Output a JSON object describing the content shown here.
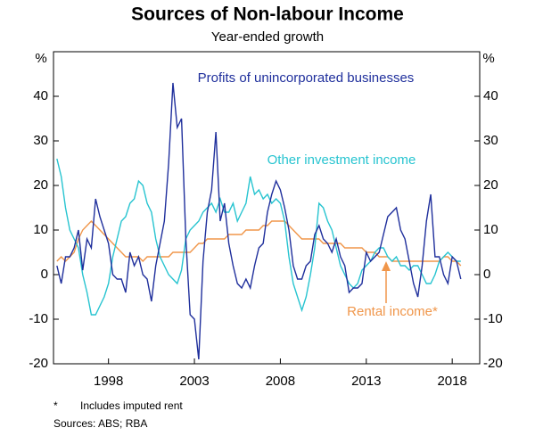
{
  "chart_data": {
    "type": "line",
    "title": "Sources of Non-labour Income",
    "subtitle": "Year-ended growth",
    "y_unit": "%",
    "xlim": [
      1994.8,
      2019.6
    ],
    "xticks": [
      1998,
      2003,
      2008,
      2013,
      2018
    ],
    "ylim": [
      -20,
      50
    ],
    "yticks": [
      -20,
      -10,
      0,
      10,
      20,
      30,
      40
    ],
    "y2lim": [
      -20,
      50
    ],
    "y2ticks": [
      -20,
      -10,
      0,
      10,
      20,
      30,
      40
    ],
    "x": [
      1995,
      1995.25,
      1995.5,
      1995.75,
      1996,
      1996.25,
      1996.5,
      1996.75,
      1997,
      1997.25,
      1997.5,
      1997.75,
      1998,
      1998.25,
      1998.5,
      1998.75,
      1999,
      1999.25,
      1999.5,
      1999.75,
      2000,
      2000.25,
      2000.5,
      2000.75,
      2001,
      2001.25,
      2001.5,
      2001.75,
      2002,
      2002.25,
      2002.5,
      2002.75,
      2003,
      2003.25,
      2003.5,
      2003.75,
      2004,
      2004.25,
      2004.5,
      2004.75,
      2005,
      2005.25,
      2005.5,
      2005.75,
      2006,
      2006.25,
      2006.5,
      2006.75,
      2007,
      2007.25,
      2007.5,
      2007.75,
      2008,
      2008.25,
      2008.5,
      2008.75,
      2009,
      2009.25,
      2009.5,
      2009.75,
      2010,
      2010.25,
      2010.5,
      2010.75,
      2011,
      2011.25,
      2011.5,
      2011.75,
      2012,
      2012.25,
      2012.5,
      2012.75,
      2013,
      2013.25,
      2013.5,
      2013.75,
      2014,
      2014.25,
      2014.5,
      2014.75,
      2015,
      2015.25,
      2015.5,
      2015.75,
      2016,
      2016.25,
      2016.5,
      2016.75,
      2017,
      2017.25,
      2017.5,
      2017.75,
      2018,
      2018.25,
      2018.5
    ],
    "series": [
      {
        "name": "Profits of unincorporated businesses",
        "color": "#1f2f9c",
        "values": [
          2,
          -2,
          4,
          4,
          6,
          10,
          1,
          8,
          6,
          17,
          13,
          10,
          7,
          0,
          -1,
          -1,
          -4,
          5,
          2,
          4,
          0,
          -1,
          -6,
          2,
          7,
          12,
          25,
          43,
          33,
          35,
          8,
          -9,
          -10,
          -19,
          3,
          14,
          19,
          32,
          12,
          16,
          7,
          2,
          -2,
          -3,
          -1,
          -3,
          2,
          6,
          7,
          14,
          18,
          21,
          19,
          15,
          10,
          2,
          -1,
          -1,
          2,
          3,
          9,
          11,
          8,
          7,
          5,
          8,
          4,
          2,
          -4,
          -3,
          -3,
          -2,
          5,
          3,
          4,
          5,
          9,
          13,
          14,
          15,
          10,
          8,
          3,
          -2,
          -5,
          2,
          12,
          18,
          4,
          4,
          0,
          -2,
          4,
          3,
          -1
        ]
      },
      {
        "name": "Other investment income",
        "color": "#27c4d0",
        "values": [
          26,
          22,
          15,
          10,
          8,
          6,
          0,
          -4,
          -9,
          -9,
          -7,
          -5,
          -2,
          4,
          8,
          12,
          13,
          16,
          17,
          21,
          20,
          16,
          14,
          8,
          4,
          2,
          0,
          -1,
          -2,
          1,
          8,
          10,
          11,
          12,
          14,
          15,
          16,
          14,
          17,
          14,
          14,
          16,
          12,
          14,
          16,
          22,
          18,
          19,
          17,
          18,
          16,
          17,
          16,
          12,
          4,
          -2,
          -5,
          -8,
          -5,
          0,
          6,
          16,
          15,
          12,
          10,
          6,
          2,
          0,
          -2,
          -3,
          -2,
          1,
          2,
          3,
          5,
          6,
          6,
          4,
          3,
          4,
          2,
          2,
          1,
          2,
          2,
          0,
          -2,
          -2,
          0,
          3,
          4,
          5,
          4,
          3,
          3
        ]
      },
      {
        "name": "Rental income*",
        "color": "#f0964a",
        "values": [
          3,
          4,
          3,
          4,
          5,
          8,
          10,
          11,
          12,
          11,
          10,
          9,
          8,
          7,
          6,
          5,
          4,
          4,
          4,
          4,
          3,
          4,
          4,
          4,
          4,
          4,
          4,
          5,
          5,
          5,
          5,
          5,
          6,
          7,
          7,
          8,
          8,
          8,
          8,
          8,
          9,
          9,
          9,
          9,
          10,
          10,
          10,
          10,
          11,
          11,
          12,
          12,
          12,
          12,
          11,
          10,
          9,
          8,
          8,
          8,
          8,
          8,
          7,
          7,
          7,
          7,
          7,
          6,
          6,
          6,
          6,
          6,
          5,
          5,
          5,
          4,
          4,
          4,
          3,
          3,
          3,
          3,
          3,
          3,
          3,
          3,
          3,
          3,
          3,
          3,
          4,
          4,
          3,
          3,
          2
        ]
      }
    ],
    "footnote_marker": "*",
    "footnote": "Includes imputed rent",
    "sources": "Sources:   ABS; RBA"
  }
}
